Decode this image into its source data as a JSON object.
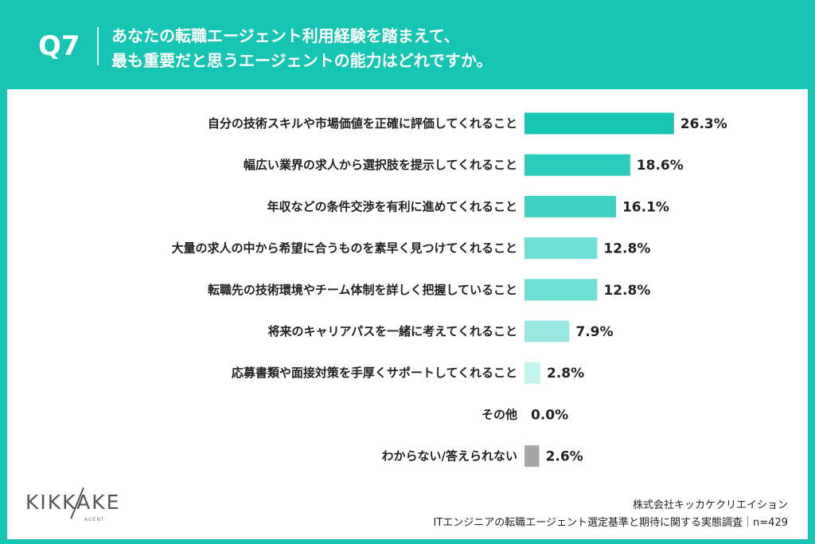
{
  "header": {
    "question_number": "Q7",
    "title_line1": "あなたの転職エージェント利用経験を踏まえて、",
    "title_line2": "最も重要だと思うエージェントの能力はどれですか。"
  },
  "chart_data": {
    "type": "bar",
    "orientation": "horizontal",
    "categories": [
      "自分の技術スキルや市場価値を正確に評価してくれること",
      "幅広い業界の求人から選択肢を提示してくれること",
      "年収などの条件交渉を有利に進めてくれること",
      "大量の求人の中から希望に合うものを素早く見つけてくれること",
      "転職先の技術環境やチーム体制を詳しく把握していること",
      "将来のキャリアパスを一緒に考えてくれること",
      "応募書類や面接対策を手厚くサポートしてくれること",
      "その他",
      "わからない/答えられない"
    ],
    "values": [
      26.3,
      18.6,
      16.1,
      12.8,
      12.8,
      7.9,
      2.8,
      0.0,
      2.6
    ],
    "value_labels": [
      "26.3%",
      "18.6%",
      "16.1%",
      "12.8%",
      "12.8%",
      "7.9%",
      "2.8%",
      "0.0%",
      "2.6%"
    ],
    "colors": [
      "#17c3b2",
      "#2ccbbb",
      "#3ed0c1",
      "#6ddfd4",
      "#6ddfd4",
      "#9ae9e1",
      "#c4f2ed",
      "#c4f2ed",
      "#a6a6a6"
    ],
    "unit": "%",
    "xlim": [
      0,
      30
    ],
    "grid": false,
    "legend": "none"
  },
  "logo": {
    "text": "KIKKAKE",
    "sub": "AGENT"
  },
  "footer": {
    "company": "株式会社キッカケクリエイション",
    "survey": "ITエンジニアの転職エージェント選定基準と期待に関する実態調査｜n=429"
  },
  "colors": {
    "brand": "#17c3b2",
    "panel": "#ffffff",
    "text": "#222222"
  }
}
